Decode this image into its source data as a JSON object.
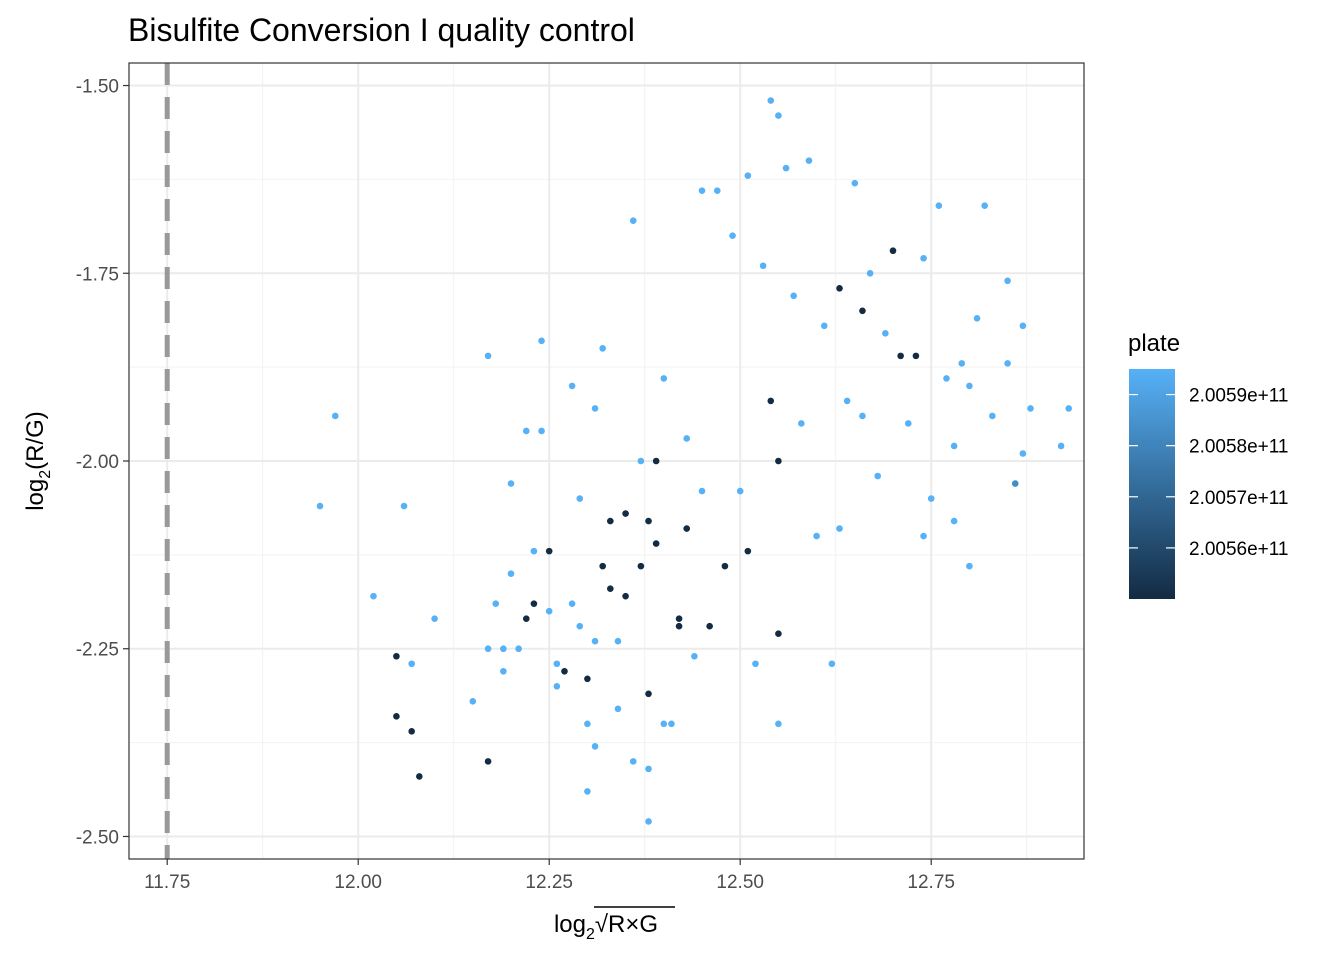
{
  "chart_data": {
    "type": "scatter",
    "title": "Bisulfite Conversion I quality control",
    "xlabel_base": "log",
    "xlabel_sub": "2",
    "xlabel_radicand": "R×G",
    "ylabel_base": "log",
    "ylabel_sub": "2",
    "ylabel_arg": "(R/G)",
    "xlim": [
      11.7,
      12.95
    ],
    "ylim": [
      -2.53,
      -1.47
    ],
    "x_ticks": [
      11.75,
      12.0,
      12.25,
      12.5,
      12.75
    ],
    "x_tick_labels": [
      "11.75",
      "12.00",
      "12.25",
      "12.50",
      "12.75"
    ],
    "y_ticks": [
      -1.5,
      -1.75,
      -2.0,
      -2.25,
      -2.5
    ],
    "y_tick_labels": [
      "-1.50",
      "-1.75",
      "-2.00",
      "-2.25",
      "-2.50"
    ],
    "grid": true,
    "threshold_line": {
      "x": 11.75,
      "style": "dashed",
      "color": "#999999"
    },
    "legend": {
      "title": "plate",
      "position": "right",
      "type": "colorbar",
      "color_low": "#132B43",
      "color_high": "#56B1F7",
      "range": [
        200550000000,
        200595000000
      ],
      "break_values": [
        200590000000,
        200580000000,
        200570000000,
        200560000000
      ],
      "break_labels": [
        "2.0059e+11",
        "2.0058e+11",
        "2.0057e+11",
        "2.0056e+11"
      ]
    },
    "colors": {
      "light": "#56B1F7",
      "mid": "#3E8FC8",
      "dark": "#132B43"
    },
    "points": [
      [
        11.95,
        -2.06,
        "light"
      ],
      [
        11.97,
        -1.94,
        "light"
      ],
      [
        12.02,
        -2.18,
        "light"
      ],
      [
        12.05,
        -2.26,
        "dark"
      ],
      [
        12.05,
        -2.34,
        "dark"
      ],
      [
        12.06,
        -2.06,
        "light"
      ],
      [
        12.07,
        -2.36,
        "dark"
      ],
      [
        12.07,
        -2.27,
        "light"
      ],
      [
        12.08,
        -2.42,
        "dark"
      ],
      [
        12.1,
        -2.21,
        "light"
      ],
      [
        12.15,
        -2.32,
        "light"
      ],
      [
        12.17,
        -2.25,
        "light"
      ],
      [
        12.17,
        -2.4,
        "dark"
      ],
      [
        12.17,
        -1.86,
        "light"
      ],
      [
        12.18,
        -2.19,
        "light"
      ],
      [
        12.19,
        -2.25,
        "light"
      ],
      [
        12.19,
        -2.28,
        "light"
      ],
      [
        12.2,
        -2.15,
        "light"
      ],
      [
        12.2,
        -2.03,
        "light"
      ],
      [
        12.21,
        -2.25,
        "light"
      ],
      [
        12.22,
        -2.21,
        "dark"
      ],
      [
        12.22,
        -1.96,
        "light"
      ],
      [
        12.23,
        -2.19,
        "dark"
      ],
      [
        12.23,
        -2.12,
        "light"
      ],
      [
        12.24,
        -1.84,
        "light"
      ],
      [
        12.24,
        -1.96,
        "light"
      ],
      [
        12.25,
        -2.12,
        "dark"
      ],
      [
        12.25,
        -2.2,
        "light"
      ],
      [
        12.26,
        -2.3,
        "light"
      ],
      [
        12.26,
        -2.27,
        "light"
      ],
      [
        12.27,
        -2.28,
        "dark"
      ],
      [
        12.28,
        -1.9,
        "light"
      ],
      [
        12.28,
        -2.19,
        "light"
      ],
      [
        12.29,
        -2.05,
        "light"
      ],
      [
        12.29,
        -2.22,
        "light"
      ],
      [
        12.3,
        -2.29,
        "dark"
      ],
      [
        12.3,
        -2.35,
        "light"
      ],
      [
        12.3,
        -2.44,
        "light"
      ],
      [
        12.31,
        -2.24,
        "light"
      ],
      [
        12.31,
        -2.38,
        "light"
      ],
      [
        12.31,
        -1.93,
        "light"
      ],
      [
        12.32,
        -2.14,
        "dark"
      ],
      [
        12.32,
        -1.85,
        "light"
      ],
      [
        12.33,
        -2.08,
        "dark"
      ],
      [
        12.33,
        -2.17,
        "dark"
      ],
      [
        12.34,
        -2.24,
        "light"
      ],
      [
        12.34,
        -2.33,
        "light"
      ],
      [
        12.35,
        -2.07,
        "dark"
      ],
      [
        12.35,
        -2.18,
        "dark"
      ],
      [
        12.36,
        -2.4,
        "light"
      ],
      [
        12.36,
        -1.68,
        "light"
      ],
      [
        12.37,
        -2.0,
        "light"
      ],
      [
        12.37,
        -2.14,
        "dark"
      ],
      [
        12.38,
        -2.08,
        "dark"
      ],
      [
        12.38,
        -2.31,
        "dark"
      ],
      [
        12.38,
        -2.48,
        "light"
      ],
      [
        12.38,
        -2.41,
        "light"
      ],
      [
        12.39,
        -2.0,
        "dark"
      ],
      [
        12.39,
        -2.11,
        "dark"
      ],
      [
        12.4,
        -2.35,
        "light"
      ],
      [
        12.4,
        -1.89,
        "light"
      ],
      [
        12.41,
        -2.35,
        "light"
      ],
      [
        12.42,
        -2.21,
        "dark"
      ],
      [
        12.42,
        -2.22,
        "dark"
      ],
      [
        12.43,
        -1.97,
        "light"
      ],
      [
        12.43,
        -2.09,
        "dark"
      ],
      [
        12.44,
        -2.26,
        "light"
      ],
      [
        12.45,
        -1.64,
        "light"
      ],
      [
        12.45,
        -2.04,
        "light"
      ],
      [
        12.46,
        -2.22,
        "dark"
      ],
      [
        12.47,
        -1.64,
        "light"
      ],
      [
        12.48,
        -2.14,
        "dark"
      ],
      [
        12.49,
        -1.7,
        "light"
      ],
      [
        12.5,
        -2.04,
        "light"
      ],
      [
        12.51,
        -1.62,
        "light"
      ],
      [
        12.51,
        -2.12,
        "dark"
      ],
      [
        12.52,
        -2.27,
        "light"
      ],
      [
        12.53,
        -1.74,
        "light"
      ],
      [
        12.54,
        -1.52,
        "light"
      ],
      [
        12.54,
        -1.92,
        "dark"
      ],
      [
        12.55,
        -2.0,
        "dark"
      ],
      [
        12.55,
        -2.23,
        "dark"
      ],
      [
        12.55,
        -1.54,
        "light"
      ],
      [
        12.55,
        -2.35,
        "light"
      ],
      [
        12.56,
        -1.61,
        "light"
      ],
      [
        12.57,
        -1.78,
        "light"
      ],
      [
        12.58,
        -1.95,
        "light"
      ],
      [
        12.59,
        -1.6,
        "light"
      ],
      [
        12.6,
        -2.1,
        "light"
      ],
      [
        12.61,
        -1.82,
        "light"
      ],
      [
        12.62,
        -2.27,
        "light"
      ],
      [
        12.63,
        -1.77,
        "dark"
      ],
      [
        12.63,
        -2.09,
        "light"
      ],
      [
        12.64,
        -1.92,
        "light"
      ],
      [
        12.65,
        -1.63,
        "light"
      ],
      [
        12.66,
        -1.8,
        "dark"
      ],
      [
        12.66,
        -1.94,
        "light"
      ],
      [
        12.67,
        -1.75,
        "light"
      ],
      [
        12.68,
        -2.02,
        "light"
      ],
      [
        12.69,
        -1.83,
        "light"
      ],
      [
        12.7,
        -1.72,
        "dark"
      ],
      [
        12.71,
        -1.86,
        "dark"
      ],
      [
        12.72,
        -1.95,
        "light"
      ],
      [
        12.73,
        -1.86,
        "dark"
      ],
      [
        12.74,
        -1.73,
        "light"
      ],
      [
        12.75,
        -2.05,
        "light"
      ],
      [
        12.76,
        -1.66,
        "light"
      ],
      [
        12.77,
        -1.89,
        "light"
      ],
      [
        12.78,
        -1.98,
        "light"
      ],
      [
        12.79,
        -1.87,
        "light"
      ],
      [
        12.8,
        -2.14,
        "light"
      ],
      [
        12.81,
        -1.81,
        "light"
      ],
      [
        12.82,
        -1.66,
        "light"
      ],
      [
        12.83,
        -1.94,
        "light"
      ],
      [
        12.85,
        -1.76,
        "light"
      ],
      [
        12.86,
        -2.03,
        "mid"
      ],
      [
        12.87,
        -1.82,
        "light"
      ],
      [
        12.87,
        -1.99,
        "light"
      ],
      [
        12.88,
        -1.93,
        "light"
      ],
      [
        12.92,
        -1.98,
        "light"
      ],
      [
        12.93,
        -1.93,
        "light"
      ],
      [
        12.85,
        -1.87,
        "light"
      ],
      [
        12.8,
        -1.9,
        "light"
      ],
      [
        12.78,
        -2.08,
        "light"
      ],
      [
        12.74,
        -2.1,
        "light"
      ]
    ]
  }
}
